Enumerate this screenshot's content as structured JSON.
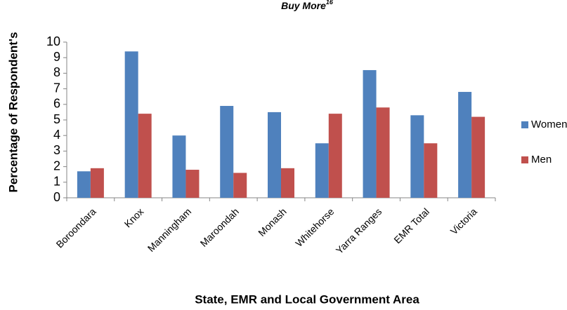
{
  "chart_data": {
    "type": "bar",
    "title": "Buy More",
    "title_superscript": "16",
    "y_label": "Percentage of Respondent's",
    "x_label": "State, EMR and Local Government Area",
    "categories": [
      "Boroondara",
      "Knox",
      "Manningham",
      "Maroondah",
      "Monash",
      "Whitehorse",
      "Yarra Ranges",
      "EMR Total",
      "Victoria"
    ],
    "series": [
      {
        "name": "Women",
        "color": "#4f81bd",
        "values": [
          1.7,
          9.4,
          4.0,
          5.9,
          5.5,
          3.5,
          8.2,
          5.3,
          6.8
        ]
      },
      {
        "name": "Men",
        "color": "#c0504d",
        "values": [
          1.9,
          5.4,
          1.8,
          1.6,
          1.9,
          5.4,
          5.8,
          3.5,
          5.2
        ]
      }
    ],
    "ylim": [
      0,
      10
    ],
    "yticks": [
      0,
      1,
      2,
      3,
      4,
      5,
      6,
      7,
      8,
      9,
      10
    ],
    "grid": false,
    "legend": "right"
  }
}
